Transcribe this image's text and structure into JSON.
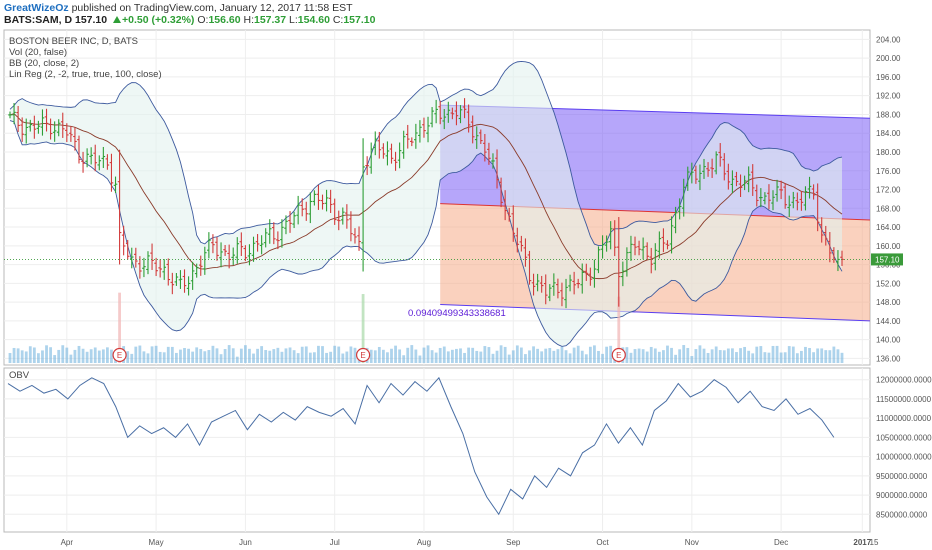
{
  "header": {
    "author": "GreatWizeOz",
    "published": "published on TradingView.com, January 12, 2017 11:58 EST",
    "symbol": "BATS:SAM, D",
    "price": "157.10",
    "change": "+0.50 (+0.32%)",
    "o_label": "O:",
    "o_value": "156.60",
    "h_label": "H:",
    "h_value": "157.37",
    "l_label": "L:",
    "l_value": "154.60",
    "c_label": "C:",
    "c_value": "157.10"
  },
  "legend": {
    "title": "BOSTON BEER INC, D, BATS",
    "vol": "Vol (20, false)",
    "bb": "BB (20, close, 2)",
    "linreg": "Lin Reg (2, -2, true, true, 100, close)"
  },
  "lin_reg_value": "0.09409499343338681",
  "current_price_label": "157.10",
  "earnings_marker": "E",
  "colors": {
    "up_bar": "#2e9e36",
    "down_bar": "#d23b3b",
    "bb_band": "#3d5a9e",
    "bb_fill": "#e2f1ee",
    "basis": "#8a3b2a",
    "upper_channel": "#7a5cf5",
    "lower_channel": "#f5a47e",
    "obv_line": "#4a6fa5",
    "volume": "#6aaedc"
  },
  "chart_data": [
    {
      "type": "ohlc",
      "title": "BOSTON BEER INC, D, BATS",
      "x_ticks": [
        "Apr",
        "May",
        "Jun",
        "Jul",
        "Aug",
        "Sep",
        "Oct",
        "Nov",
        "Dec",
        "2017",
        "15"
      ],
      "y_ticks": [
        "136.00",
        "140.00",
        "144.00",
        "148.00",
        "152.00",
        "156.00",
        "160.00",
        "164.00",
        "168.00",
        "172.00",
        "176.00",
        "180.00",
        "184.00",
        "188.00",
        "192.00",
        "196.00",
        "200.00",
        "204.00"
      ],
      "ylim": [
        134.6,
        206.0
      ],
      "grid": true,
      "close_series": [
        {
          "i": 0,
          "c": 187
        },
        {
          "i": 5,
          "c": 185
        },
        {
          "i": 10,
          "c": 186
        },
        {
          "i": 14,
          "c": 184
        },
        {
          "i": 17,
          "c": 180
        },
        {
          "i": 20,
          "c": 178
        },
        {
          "i": 24,
          "c": 178
        },
        {
          "i": 26,
          "c": 173
        },
        {
          "i": 27,
          "c": 161
        },
        {
          "i": 30,
          "c": 157
        },
        {
          "i": 34,
          "c": 156
        },
        {
          "i": 38,
          "c": 155
        },
        {
          "i": 42,
          "c": 151
        },
        {
          "i": 44,
          "c": 153
        },
        {
          "i": 47,
          "c": 157
        },
        {
          "i": 50,
          "c": 160
        },
        {
          "i": 54,
          "c": 158
        },
        {
          "i": 58,
          "c": 159
        },
        {
          "i": 62,
          "c": 161
        },
        {
          "i": 66,
          "c": 163
        },
        {
          "i": 70,
          "c": 166
        },
        {
          "i": 74,
          "c": 170
        },
        {
          "i": 78,
          "c": 169
        },
        {
          "i": 82,
          "c": 166
        },
        {
          "i": 86,
          "c": 160
        },
        {
          "i": 87,
          "c": 178
        },
        {
          "i": 90,
          "c": 181
        },
        {
          "i": 94,
          "c": 179
        },
        {
          "i": 98,
          "c": 182
        },
        {
          "i": 102,
          "c": 186
        },
        {
          "i": 106,
          "c": 188
        },
        {
          "i": 110,
          "c": 189
        },
        {
          "i": 113,
          "c": 186
        },
        {
          "i": 117,
          "c": 181
        },
        {
          "i": 121,
          "c": 171
        },
        {
          "i": 124,
          "c": 163
        },
        {
          "i": 128,
          "c": 154
        },
        {
          "i": 132,
          "c": 150
        },
        {
          "i": 136,
          "c": 151
        },
        {
          "i": 140,
          "c": 152
        },
        {
          "i": 144,
          "c": 156
        },
        {
          "i": 148,
          "c": 163
        },
        {
          "i": 150,
          "c": 155
        },
        {
          "i": 154,
          "c": 160
        },
        {
          "i": 158,
          "c": 158
        },
        {
          "i": 162,
          "c": 161
        },
        {
          "i": 166,
          "c": 173
        },
        {
          "i": 170,
          "c": 176
        },
        {
          "i": 174,
          "c": 178
        },
        {
          "i": 178,
          "c": 174
        },
        {
          "i": 182,
          "c": 173
        },
        {
          "i": 186,
          "c": 170
        },
        {
          "i": 190,
          "c": 171
        },
        {
          "i": 194,
          "c": 169
        },
        {
          "i": 198,
          "c": 172
        },
        {
          "i": 200,
          "c": 162
        },
        {
          "i": 203,
          "c": 157.1
        }
      ],
      "linreg_channel": {
        "start_upper": 190,
        "end_upper": 187.2,
        "start_mid": 169.0,
        "end_mid": 165.5,
        "start_lower": 147.5,
        "end_lower": 144.0
      }
    },
    {
      "type": "line",
      "title": "OBV",
      "y_ticks": [
        "8500000.0000",
        "9000000.0000",
        "9500000.0000",
        "10000000.0000",
        "10500000.0000",
        "11000000.0000",
        "11500000.0000",
        "12000000.0000"
      ],
      "ylim": [
        8300000,
        12200000
      ],
      "series": [
        {
          "name": "OBV",
          "values": [
            11900000,
            11700000,
            11850000,
            11650000,
            11750000,
            11500000,
            11850000,
            12050000,
            11900000,
            11300000,
            10500000,
            10800000,
            10600000,
            10750000,
            10500000,
            10850000,
            10300000,
            10900000,
            11050000,
            11200000,
            10700000,
            11100000,
            10900000,
            11150000,
            10950000,
            11300000,
            11150000,
            11050000,
            11250000,
            10850000,
            11850000,
            11400000,
            11900000,
            11600000,
            11950000,
            11700000,
            12050000,
            11300000,
            10600000,
            9600000,
            8950000,
            8500000,
            9150000,
            8900000,
            9500000,
            9200000,
            9700000,
            9500000,
            10100000,
            10300000,
            10850000,
            10350000,
            10750000,
            10300000,
            11200000,
            11450000,
            11900000,
            11550000,
            11700000,
            12000000,
            11800000,
            11400000,
            11700000,
            11300000,
            11200000,
            11500000,
            11100000,
            11250000,
            10950000,
            10500000
          ]
        }
      ]
    }
  ]
}
